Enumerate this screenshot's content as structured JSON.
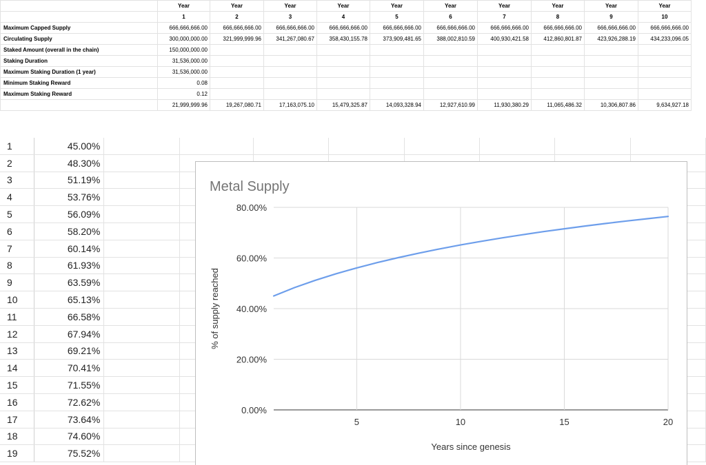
{
  "top_table": {
    "year_label": "Year",
    "year_numbers": [
      "1",
      "2",
      "3",
      "4",
      "5",
      "6",
      "7",
      "8",
      "9",
      "10"
    ],
    "rows": [
      {
        "label": "Maximum Capped Supply",
        "values": [
          "666,666,666.00",
          "666,666,666.00",
          "666,666,666.00",
          "666,666,666.00",
          "666,666,666.00",
          "666,666,666.00",
          "666,666,666.00",
          "666,666,666.00",
          "666,666,666.00",
          "666,666,666.00"
        ]
      },
      {
        "label": "Circulating Supply",
        "values": [
          "300,000,000.00",
          "321,999,999.96",
          "341,267,080.67",
          "358,430,155.78",
          "373,909,481.65",
          "388,002,810.59",
          "400,930,421.58",
          "412,860,801.87",
          "423,926,288.19",
          "434,233,096.05"
        ]
      },
      {
        "label": "Staked Amount (overall in the chain)",
        "values": [
          "150,000,000.00"
        ]
      },
      {
        "label": "Staking Duration",
        "values": [
          "31,536,000.00"
        ]
      },
      {
        "label": "Maximum Staking Duration (1 year)",
        "values": [
          "31,536,000.00"
        ]
      },
      {
        "label": "Minimum Staking Reward",
        "values": [
          "0.08"
        ]
      },
      {
        "label": "Maximum Staking Reward",
        "values": [
          "0.12"
        ]
      },
      {
        "label": "",
        "values": [
          "21,999,999.96",
          "19,267,080.71",
          "17,163,075.10",
          "15,479,325.87",
          "14,093,328.94",
          "12,927,610.99",
          "11,930,380.29",
          "11,065,486.32",
          "10,306,807.86",
          "9,634,927.18"
        ]
      }
    ]
  },
  "lower_rows": [
    {
      "num": "1",
      "value": "45.00%"
    },
    {
      "num": "2",
      "value": "48.30%"
    },
    {
      "num": "3",
      "value": "51.19%"
    },
    {
      "num": "4",
      "value": "53.76%"
    },
    {
      "num": "5",
      "value": "56.09%"
    },
    {
      "num": "6",
      "value": "58.20%"
    },
    {
      "num": "7",
      "value": "60.14%"
    },
    {
      "num": "8",
      "value": "61.93%"
    },
    {
      "num": "9",
      "value": "63.59%"
    },
    {
      "num": "10",
      "value": "65.13%"
    },
    {
      "num": "11",
      "value": "66.58%"
    },
    {
      "num": "12",
      "value": "67.94%"
    },
    {
      "num": "13",
      "value": "69.21%"
    },
    {
      "num": "14",
      "value": "70.41%"
    },
    {
      "num": "15",
      "value": "71.55%"
    },
    {
      "num": "16",
      "value": "72.62%"
    },
    {
      "num": "17",
      "value": "73.64%"
    },
    {
      "num": "18",
      "value": "74.60%"
    },
    {
      "num": "19",
      "value": "75.52%"
    }
  ],
  "chart_data": {
    "type": "line",
    "title": "Metal Supply",
    "xlabel": "Years since genesis",
    "ylabel": "% of supply reached",
    "xlim": [
      1,
      20
    ],
    "ylim": [
      0,
      80
    ],
    "xticks": [
      5,
      10,
      15,
      20
    ],
    "yticks": [
      0,
      20,
      40,
      60,
      80
    ],
    "ytick_labels": [
      "0.00%",
      "20.00%",
      "40.00%",
      "60.00%",
      "80.00%"
    ],
    "xtick_labels": [
      "5",
      "10",
      "15",
      "20"
    ],
    "grid": true,
    "line_color": "#6d9eeb",
    "series": [
      {
        "x": [
          1,
          2,
          3,
          4,
          5,
          6,
          7,
          8,
          9,
          10,
          11,
          12,
          13,
          14,
          15,
          16,
          17,
          18,
          19,
          20
        ],
        "values": [
          45.0,
          48.3,
          51.19,
          53.76,
          56.09,
          58.2,
          60.14,
          61.93,
          63.59,
          65.13,
          66.58,
          67.94,
          69.21,
          70.41,
          71.55,
          72.62,
          73.64,
          74.6,
          75.52,
          76.4
        ]
      }
    ]
  }
}
